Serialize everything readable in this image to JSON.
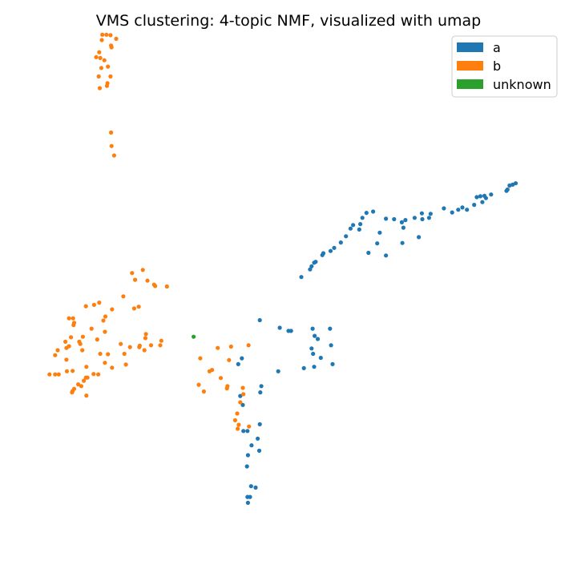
{
  "colors": {
    "a": "#1f77b4",
    "b": "#ff7f0e",
    "unknown": "#2ca02c"
  },
  "chart_data": {
    "type": "scatter",
    "title": "VMS clustering: 4-topic NMF, visualized with umap",
    "xlabel": "",
    "ylabel": "",
    "axes_visible": false,
    "grid": false,
    "legend_position": "top-right",
    "xlim": [
      0,
      10
    ],
    "ylim": [
      0,
      10
    ],
    "series": [
      {
        "name": "a",
        "color": "#1f77b4",
        "points": [
          [
            9.31,
            6.67
          ],
          [
            9.43,
            6.72
          ],
          [
            9.37,
            6.69
          ],
          [
            9.27,
            6.58
          ],
          [
            9.25,
            6.55
          ],
          [
            8.95,
            6.47
          ],
          [
            8.82,
            6.44
          ],
          [
            8.85,
            6.39
          ],
          [
            8.74,
            6.43
          ],
          [
            8.67,
            6.41
          ],
          [
            8.78,
            6.3
          ],
          [
            8.62,
            6.24
          ],
          [
            8.39,
            6.18
          ],
          [
            8.48,
            6.13
          ],
          [
            8.31,
            6.13
          ],
          [
            8.19,
            6.07
          ],
          [
            8.03,
            6.16
          ],
          [
            7.77,
            6.04
          ],
          [
            7.74,
            5.95
          ],
          [
            7.6,
            6.05
          ],
          [
            7.61,
            5.92
          ],
          [
            7.46,
            5.95
          ],
          [
            7.28,
            5.9
          ],
          [
            7.21,
            5.85
          ],
          [
            7.24,
            5.73
          ],
          [
            7.06,
            5.92
          ],
          [
            6.9,
            5.93
          ],
          [
            6.78,
            5.62
          ],
          [
            6.65,
            6.09
          ],
          [
            6.52,
            6.06
          ],
          [
            6.44,
            5.95
          ],
          [
            6.4,
            5.81
          ],
          [
            6.26,
            5.79
          ],
          [
            6.21,
            5.71
          ],
          [
            6.38,
            5.69
          ],
          [
            6.12,
            5.54
          ],
          [
            6.02,
            5.4
          ],
          [
            5.89,
            5.28
          ],
          [
            5.82,
            5.21
          ],
          [
            5.68,
            5.16
          ],
          [
            5.66,
            5.12
          ],
          [
            5.53,
            4.97
          ],
          [
            5.5,
            4.95
          ],
          [
            5.45,
            4.87
          ],
          [
            5.42,
            4.8
          ],
          [
            5.25,
            4.63
          ],
          [
            6.73,
            5.38
          ],
          [
            7.22,
            5.39
          ],
          [
            6.56,
            5.17
          ],
          [
            6.9,
            5.11
          ],
          [
            7.54,
            5.52
          ],
          [
            5.81,
            3.48
          ],
          [
            5.47,
            3.48
          ],
          [
            4.83,
            3.5
          ],
          [
            5.57,
            3.25
          ],
          [
            5.51,
            3.32
          ],
          [
            5.83,
            3.11
          ],
          [
            5.45,
            3.04
          ],
          [
            5.48,
            2.92
          ],
          [
            5.5,
            2.63
          ],
          [
            5.63,
            2.83
          ],
          [
            5.86,
            2.69
          ],
          [
            5.3,
            2.6
          ],
          [
            4.8,
            2.53
          ],
          [
            4.09,
            2.82
          ],
          [
            5.05,
            3.43
          ],
          [
            5.0,
            3.43
          ],
          [
            4.44,
            3.67
          ],
          [
            4.02,
            2.69
          ],
          [
            4.45,
            2.06
          ],
          [
            4.47,
            2.2
          ],
          [
            4.06,
            1.98
          ],
          [
            4.11,
            1.78
          ],
          [
            4.44,
            1.35
          ],
          [
            4.2,
            1.2
          ],
          [
            4.12,
            1.2
          ],
          [
            4.4,
            1.03
          ],
          [
            4.28,
            0.88
          ],
          [
            4.43,
            0.76
          ],
          [
            4.21,
            0.66
          ],
          [
            4.19,
            0.41
          ],
          [
            4.27,
            -0.03
          ],
          [
            4.36,
            -0.06
          ],
          [
            4.2,
            -0.27
          ],
          [
            4.21,
            -0.4
          ],
          [
            4.25,
            -0.27
          ]
        ]
      },
      {
        "name": "b",
        "color": "#ff7f0e",
        "points": [
          [
            1.37,
            10.03
          ],
          [
            1.45,
            10.03
          ],
          [
            1.53,
            10.02
          ],
          [
            1.64,
            9.94
          ],
          [
            1.36,
            9.91
          ],
          [
            1.54,
            9.79
          ],
          [
            1.55,
            9.75
          ],
          [
            1.31,
            9.64
          ],
          [
            1.25,
            9.53
          ],
          [
            1.33,
            9.51
          ],
          [
            1.41,
            9.46
          ],
          [
            1.35,
            9.29
          ],
          [
            1.48,
            9.32
          ],
          [
            1.53,
            9.1
          ],
          [
            1.3,
            9.1
          ],
          [
            1.47,
            8.95
          ],
          [
            1.46,
            8.89
          ],
          [
            1.32,
            8.84
          ],
          [
            1.54,
            7.85
          ],
          [
            1.55,
            7.55
          ],
          [
            1.6,
            7.34
          ],
          [
            2.16,
            4.79
          ],
          [
            1.95,
            4.72
          ],
          [
            2.01,
            4.57
          ],
          [
            2.25,
            4.55
          ],
          [
            2.38,
            4.46
          ],
          [
            2.4,
            4.43
          ],
          [
            2.63,
            4.42
          ],
          [
            1.99,
            3.93
          ],
          [
            2.08,
            3.97
          ],
          [
            1.78,
            4.2
          ],
          [
            1.31,
            4.06
          ],
          [
            1.56,
            3.91
          ],
          [
            1.43,
            3.75
          ],
          [
            1.21,
            4.01
          ],
          [
            1.05,
            3.98
          ],
          [
            0.82,
            3.61
          ],
          [
            0.72,
            3.71
          ],
          [
            0.8,
            3.71
          ],
          [
            0.81,
            3.56
          ],
          [
            1.39,
            3.66
          ],
          [
            1.16,
            3.48
          ],
          [
            1.42,
            3.41
          ],
          [
            0.99,
            3.3
          ],
          [
            0.76,
            3.29
          ],
          [
            1.27,
            3.24
          ],
          [
            0.92,
            3.19
          ],
          [
            0.98,
            3.0
          ],
          [
            1.91,
            3.07
          ],
          [
            2.1,
            3.1
          ],
          [
            2.19,
            3.0
          ],
          [
            2.09,
            3.07
          ],
          [
            2.21,
            3.27
          ],
          [
            2.22,
            3.36
          ],
          [
            2.32,
            3.11
          ],
          [
            2.5,
            3.11
          ],
          [
            2.52,
            3.21
          ],
          [
            1.48,
            2.91
          ],
          [
            1.73,
            3.14
          ],
          [
            0.65,
            3.19
          ],
          [
            0.72,
            3.09
          ],
          [
            0.67,
            3.05
          ],
          [
            0.5,
            3.0
          ],
          [
            0.45,
            2.89
          ],
          [
            0.94,
            3.14
          ],
          [
            1.33,
            2.92
          ],
          [
            1.8,
            2.92
          ],
          [
            0.67,
            2.79
          ],
          [
            1.42,
            2.72
          ],
          [
            1.83,
            2.68
          ],
          [
            1.56,
            2.61
          ],
          [
            1.06,
            2.63
          ],
          [
            0.79,
            2.54
          ],
          [
            0.68,
            2.53
          ],
          [
            0.52,
            2.46
          ],
          [
            0.45,
            2.46
          ],
          [
            0.34,
            2.46
          ],
          [
            1.29,
            2.46
          ],
          [
            1.2,
            2.47
          ],
          [
            1.08,
            2.39
          ],
          [
            1.05,
            2.39
          ],
          [
            1.01,
            2.32
          ],
          [
            0.96,
            2.2
          ],
          [
            0.9,
            2.24
          ],
          [
            0.82,
            2.14
          ],
          [
            0.79,
            2.09
          ],
          [
            0.78,
            2.06
          ],
          [
            1.06,
            1.99
          ],
          [
            3.62,
            3.05
          ],
          [
            3.88,
            3.08
          ],
          [
            4.22,
            3.11
          ],
          [
            3.28,
            2.82
          ],
          [
            3.84,
            2.78
          ],
          [
            3.46,
            2.53
          ],
          [
            3.51,
            2.56
          ],
          [
            3.68,
            2.38
          ],
          [
            3.81,
            2.2
          ],
          [
            3.8,
            2.15
          ],
          [
            3.25,
            2.23
          ],
          [
            3.35,
            2.08
          ],
          [
            4.11,
            2.16
          ],
          [
            4.12,
            2.02
          ],
          [
            4.06,
            1.84
          ],
          [
            4.0,
            1.59
          ],
          [
            3.96,
            1.44
          ],
          [
            4.03,
            1.34
          ],
          [
            4.01,
            1.25
          ],
          [
            4.23,
            1.3
          ]
        ]
      },
      {
        "name": "unknown",
        "color": "#2ca02c",
        "points": [
          [
            3.15,
            3.3
          ]
        ]
      }
    ]
  }
}
